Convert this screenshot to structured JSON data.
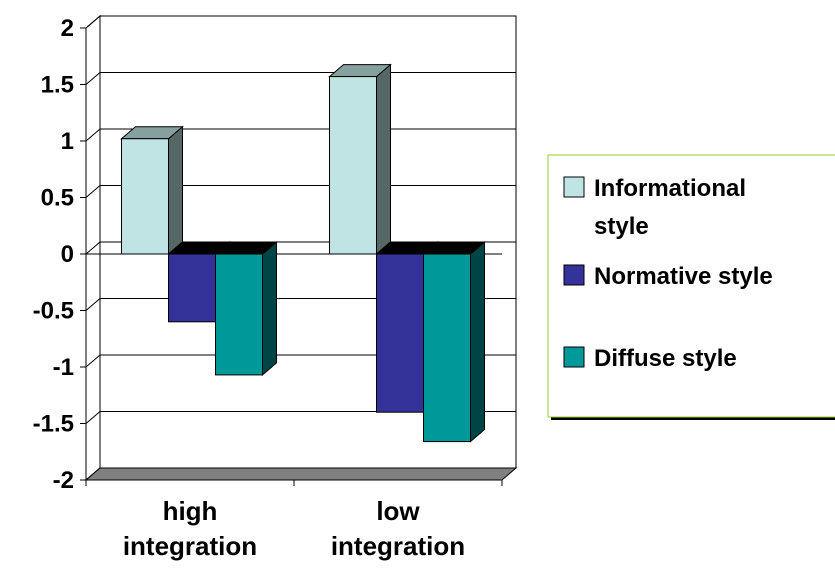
{
  "chart_data": {
    "type": "bar",
    "categories": [
      [
        "high",
        "integration"
      ],
      [
        "low",
        "integration"
      ]
    ],
    "series": [
      {
        "name": [
          "Informational",
          "style"
        ],
        "values": [
          1.02,
          1.57
        ],
        "color": "#C0E4E4"
      },
      {
        "name": [
          "Normative style"
        ],
        "values": [
          -0.6,
          -1.4
        ],
        "color": "#333399"
      },
      {
        "name": [
          "Diffuse style"
        ],
        "values": [
          -1.07,
          -1.66
        ],
        "color": "#009999"
      }
    ],
    "ylim": [
      -2,
      2
    ],
    "yticks": [
      "2",
      "1.5",
      "1",
      "0.5",
      "0",
      "-0.5",
      "-1",
      "-1.5",
      "-2"
    ],
    "ytick_values": [
      2,
      1.5,
      1,
      0.5,
      0,
      -0.5,
      -1,
      -1.5,
      -2
    ],
    "grid": true,
    "legend_position": "right",
    "render_3d": true
  }
}
